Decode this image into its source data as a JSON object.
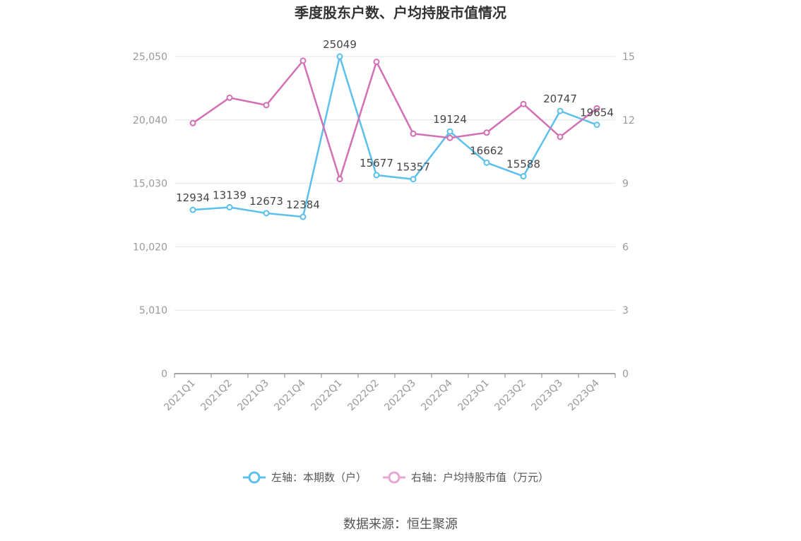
{
  "chart_data": {
    "type": "line",
    "title": "季度股东户数、户均持股市值情况",
    "categories": [
      "2021Q1",
      "2021Q2",
      "2021Q3",
      "2021Q4",
      "2022Q1",
      "2022Q2",
      "2022Q3",
      "2022Q4",
      "2023Q1",
      "2023Q2",
      "2023Q3",
      "2023Q4"
    ],
    "left_axis": {
      "min": 0,
      "max": 25050,
      "ticks": [
        0,
        5010,
        10020,
        15030,
        20040,
        25050
      ],
      "tick_labels": [
        "0",
        "5,010",
        "10,020",
        "15,030",
        "20,040",
        "25,050"
      ]
    },
    "right_axis": {
      "min": 0,
      "max": 15,
      "ticks": [
        0,
        3,
        6,
        9,
        12,
        15
      ],
      "tick_labels": [
        "0",
        "3",
        "6",
        "9",
        "12",
        "15"
      ]
    },
    "series": [
      {
        "name": "左轴：本期数（户）",
        "axis": "left",
        "color": "#5bc0eb",
        "values": [
          12934,
          13139,
          12673,
          12384,
          25049,
          15677,
          15357,
          19124,
          16662,
          15588,
          20747,
          19654
        ],
        "labels": [
          "12934",
          "13139",
          "12673",
          "12384",
          "25049",
          "15677",
          "15357",
          "19124",
          "16662",
          "15588",
          "20747",
          "19654"
        ]
      },
      {
        "name": "右轴：户均持股市值（万元）",
        "axis": "right",
        "color": "#d36fb5",
        "values": [
          11.85,
          13.05,
          12.7,
          14.8,
          9.2,
          14.75,
          11.35,
          11.15,
          11.4,
          12.75,
          11.2,
          12.55
        ]
      }
    ],
    "grid": true,
    "legend_position": "bottom"
  },
  "source_text": "数据来源：恒生聚源"
}
